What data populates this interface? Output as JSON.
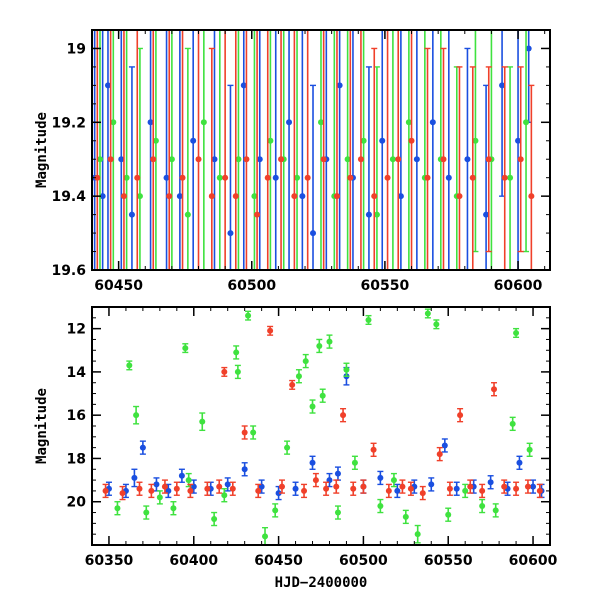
{
  "chart_data": [
    {
      "type": "scatter",
      "panel": "top",
      "xlabel": "",
      "ylabel": "Magnitude",
      "xlim": [
        60440,
        60612
      ],
      "ylim": [
        19.6,
        18.95
      ],
      "y_inverted": true,
      "x_ticks": [
        60450,
        60500,
        60550,
        60600
      ],
      "x_tick_labels": [
        "60450",
        "60500",
        "60550",
        "60600"
      ],
      "y_ticks": [
        19,
        19.2,
        19.4,
        19.6
      ],
      "y_tick_labels": [
        "19",
        "19.2",
        "19.4",
        "19.6"
      ],
      "grid": false,
      "error_bars": true,
      "series": [
        {
          "color": "#1a4fe0",
          "x": [
            60441,
            60444,
            60446,
            60451,
            60455,
            60462,
            60468,
            60473,
            60478,
            60486,
            60492,
            60497,
            60503,
            60509,
            60514,
            60519,
            60523,
            60528,
            60533,
            60538,
            60544,
            60549,
            60556,
            60562,
            60568,
            60574,
            60581,
            60588,
            60594,
            60600,
            60604
          ],
          "y": [
            19.35,
            19.4,
            19.1,
            19.3,
            19.45,
            19.2,
            19.35,
            19.4,
            19.25,
            19.3,
            19.5,
            19.1,
            19.3,
            19.35,
            19.2,
            19.4,
            19.5,
            19.3,
            19.1,
            19.35,
            19.45,
            19.25,
            19.4,
            19.3,
            19.2,
            19.35,
            19.3,
            19.45,
            19.1,
            19.25,
            19.0
          ],
          "err": [
            0.5,
            0.45,
            0.55,
            0.6,
            0.4,
            0.5,
            0.45,
            0.55,
            0.6,
            0.5,
            0.4,
            0.55,
            0.5,
            0.45,
            0.6,
            0.5,
            0.4,
            0.45,
            0.55,
            0.5,
            0.4,
            0.6,
            0.45,
            0.5,
            0.55,
            0.4,
            0.3,
            0.35,
            0.3,
            0.35,
            0.2
          ]
        },
        {
          "color": "#3fe23f",
          "x": [
            60443,
            60448,
            60453,
            60458,
            60464,
            60470,
            60476,
            60482,
            60488,
            60495,
            60501,
            60507,
            60512,
            60517,
            60526,
            60531,
            60536,
            60542,
            60547,
            60553,
            60559,
            60565,
            60571,
            60577,
            60584,
            60590,
            60597,
            60603
          ],
          "y": [
            19.3,
            19.2,
            19.35,
            19.4,
            19.25,
            19.3,
            19.45,
            19.2,
            19.35,
            19.3,
            19.4,
            19.25,
            19.3,
            19.35,
            19.2,
            19.4,
            19.3,
            19.25,
            19.45,
            19.3,
            19.2,
            19.35,
            19.3,
            19.4,
            19.25,
            19.3,
            19.35,
            19.2
          ],
          "err": [
            0.45,
            0.5,
            0.55,
            0.4,
            0.5,
            0.6,
            0.45,
            0.5,
            0.55,
            0.5,
            0.45,
            0.5,
            0.6,
            0.4,
            0.5,
            0.45,
            0.55,
            0.5,
            0.4,
            0.5,
            0.45,
            0.55,
            0.4,
            0.35,
            0.3,
            0.4,
            0.3,
            0.35
          ]
        },
        {
          "color": "#f0402a",
          "x": [
            60442,
            60447,
            60452,
            60457,
            60463,
            60469,
            60474,
            60480,
            60485,
            60490,
            60494,
            60498,
            60502,
            60506,
            60511,
            60516,
            60521,
            60527,
            60532,
            60537,
            60541,
            60546,
            60551,
            60555,
            60560,
            60566,
            60572,
            60578,
            60583,
            60589,
            60595,
            60601,
            60605
          ],
          "y": [
            19.35,
            19.3,
            19.4,
            19.35,
            19.3,
            19.4,
            19.35,
            19.3,
            19.4,
            19.35,
            19.4,
            19.3,
            19.45,
            19.35,
            19.3,
            19.4,
            19.35,
            19.3,
            19.4,
            19.35,
            19.3,
            19.4,
            19.35,
            19.3,
            19.25,
            19.35,
            19.3,
            19.4,
            19.35,
            19.3,
            19.35,
            19.3,
            19.4
          ],
          "err": [
            0.4,
            0.45,
            0.5,
            0.4,
            0.45,
            0.5,
            0.55,
            0.45,
            0.4,
            0.5,
            0.45,
            0.55,
            0.5,
            0.45,
            0.4,
            0.5,
            0.45,
            0.4,
            0.5,
            0.45,
            0.55,
            0.4,
            0.45,
            0.5,
            0.4,
            0.35,
            0.3,
            0.35,
            0.3,
            0.25,
            0.3,
            0.25,
            0.3
          ]
        }
      ]
    },
    {
      "type": "scatter",
      "panel": "bottom",
      "xlabel": "HJD−2400000",
      "ylabel": "Magnitude",
      "xlim": [
        60340,
        60610
      ],
      "ylim": [
        22,
        11
      ],
      "y_inverted": true,
      "x_ticks": [
        60350,
        60400,
        60450,
        60500,
        60550,
        60600
      ],
      "x_tick_labels": [
        "60350",
        "60400",
        "60450",
        "60500",
        "60550",
        "60600"
      ],
      "y_ticks": [
        12,
        14,
        16,
        18,
        20
      ],
      "y_tick_labels": [
        "12",
        "14",
        "16",
        "18",
        "20"
      ],
      "grid": false,
      "error_bars": true,
      "series": [
        {
          "color": "#1a4fe0",
          "x": [
            60350,
            60360,
            60365,
            60370,
            60378,
            60385,
            60393,
            60400,
            60410,
            60420,
            60430,
            60440,
            60450,
            60460,
            60470,
            60480,
            60485,
            60490,
            60500,
            60510,
            60520,
            60530,
            60540,
            60548,
            60555,
            60565,
            60575,
            60585,
            60592,
            60600,
            60605
          ],
          "y": [
            19.4,
            19.5,
            18.9,
            17.5,
            19.2,
            19.5,
            18.8,
            19.3,
            19.4,
            19.2,
            18.5,
            19.3,
            19.6,
            19.4,
            18.2,
            19.0,
            18.7,
            14.2,
            19.3,
            18.9,
            19.5,
            19.3,
            19.2,
            17.4,
            19.4,
            19.3,
            19.1,
            19.4,
            18.2,
            19.3,
            19.5
          ],
          "err": [
            0.3,
            0.3,
            0.4,
            0.3,
            0.3,
            0.3,
            0.3,
            0.3,
            0.3,
            0.3,
            0.3,
            0.3,
            0.3,
            0.3,
            0.3,
            0.3,
            0.3,
            0.4,
            0.3,
            0.3,
            0.3,
            0.3,
            0.3,
            0.3,
            0.3,
            0.3,
            0.3,
            0.3,
            0.3,
            0.3,
            0.3
          ]
        },
        {
          "color": "#3fe23f",
          "x": [
            60355,
            60362,
            60366,
            60372,
            60380,
            60388,
            60395,
            60397,
            60405,
            60412,
            60418,
            60425,
            60426,
            60432,
            60435,
            60442,
            60448,
            60455,
            60462,
            60466,
            60470,
            60474,
            60476,
            60480,
            60485,
            60490,
            60495,
            60503,
            60510,
            60518,
            60525,
            60532,
            60538,
            60543,
            60550,
            60560,
            60570,
            60578,
            60588,
            60590,
            60598
          ],
          "y": [
            20.3,
            13.7,
            16.0,
            20.5,
            19.8,
            20.3,
            12.9,
            19.0,
            16.3,
            20.8,
            19.7,
            13.1,
            14.0,
            11.4,
            16.8,
            21.6,
            20.4,
            17.5,
            14.2,
            13.5,
            15.6,
            12.8,
            15.1,
            12.6,
            20.5,
            13.9,
            18.2,
            11.6,
            20.2,
            19.0,
            20.7,
            21.5,
            11.3,
            11.8,
            20.6,
            19.5,
            20.2,
            20.4,
            16.4,
            12.2,
            17.6
          ],
          "err": [
            0.3,
            0.2,
            0.4,
            0.3,
            0.3,
            0.3,
            0.2,
            0.3,
            0.4,
            0.3,
            0.3,
            0.3,
            0.3,
            0.2,
            0.3,
            0.4,
            0.3,
            0.3,
            0.3,
            0.3,
            0.3,
            0.3,
            0.3,
            0.3,
            0.3,
            0.3,
            0.3,
            0.2,
            0.3,
            0.3,
            0.3,
            0.4,
            0.2,
            0.2,
            0.3,
            0.3,
            0.3,
            0.3,
            0.3,
            0.2,
            0.3
          ]
        },
        {
          "color": "#f0402a",
          "x": [
            60348,
            60358,
            60368,
            60375,
            60383,
            60390,
            60398,
            60408,
            60415,
            60418,
            60423,
            60430,
            60438,
            60445,
            60452,
            60458,
            60465,
            60472,
            60478,
            60484,
            60488,
            60494,
            60500,
            60506,
            60515,
            60523,
            60528,
            60535,
            60545,
            60551,
            60557,
            60563,
            60570,
            60577,
            60583,
            60590,
            60597,
            60604
          ],
          "y": [
            19.5,
            19.6,
            19.4,
            19.5,
            19.3,
            19.4,
            19.5,
            19.4,
            19.3,
            14.0,
            19.4,
            16.8,
            19.5,
            12.1,
            19.3,
            14.6,
            19.5,
            19.0,
            19.4,
            19.3,
            16.0,
            19.4,
            19.3,
            17.6,
            19.5,
            19.3,
            19.4,
            19.6,
            17.8,
            19.4,
            16.0,
            19.3,
            19.5,
            14.8,
            19.3,
            19.4,
            19.3,
            19.5
          ],
          "err": [
            0.3,
            0.3,
            0.3,
            0.3,
            0.3,
            0.3,
            0.3,
            0.3,
            0.3,
            0.2,
            0.3,
            0.3,
            0.3,
            0.2,
            0.3,
            0.2,
            0.3,
            0.3,
            0.3,
            0.3,
            0.3,
            0.3,
            0.3,
            0.3,
            0.3,
            0.3,
            0.3,
            0.3,
            0.3,
            0.3,
            0.3,
            0.3,
            0.3,
            0.3,
            0.3,
            0.3,
            0.3,
            0.3
          ]
        }
      ]
    }
  ]
}
